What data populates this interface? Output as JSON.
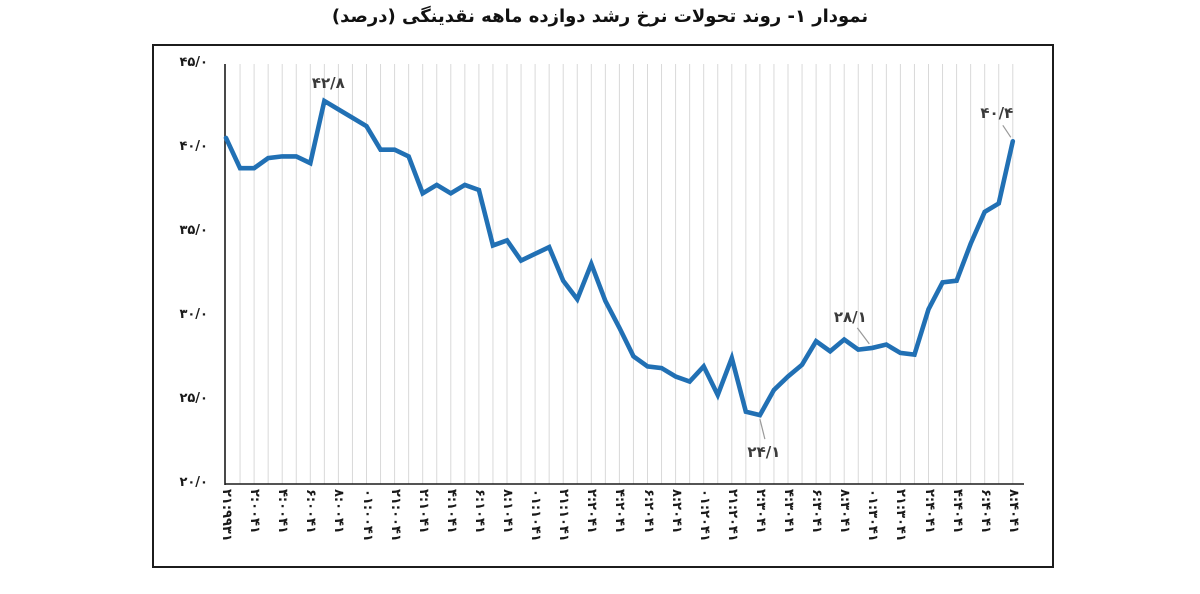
{
  "title": "نمودار ۱- روند تحولات نرخ رشد دوازده ماهه نقدینگی (درصد)",
  "colors": {
    "line": "#2170b4",
    "grid": "#d9d9d9",
    "axis": "#1c1c1c",
    "annotation_text": "#3b3b3b",
    "leader": "#9a9a9a",
    "border": "#1c1c1c",
    "background": "#ffffff"
  },
  "y_axis": {
    "labels": [
      "۴۵/۰",
      "۴۰/۰",
      "۳۵/۰",
      "۳۰/۰",
      "۲۵/۰",
      "۲۰/۰"
    ],
    "min": 20,
    "max": 45,
    "step": 5
  },
  "chart_data": {
    "type": "line",
    "title": "نمودار ۱- روند تحولات نرخ رشد دوازده ماهه نقدینگی (درصد)",
    "ylabel": "درصد",
    "ylim": [
      20,
      45
    ],
    "grid": "vertical-only",
    "legend": "none",
    "xtick_every": 2,
    "categories": [
      "۱۳۹۹:۱۲",
      "۱۴۰۰:۱",
      "۱۴۰۰:۲",
      "۱۴۰۰:۳",
      "۱۴۰۰:۴",
      "۱۴۰۰:۵",
      "۱۴۰۰:۶",
      "۱۴۰۰:۷",
      "۱۴۰۰:۸",
      "۱۴۰۰:۹",
      "۱۴۰۰:۱۰",
      "۱۴۰۰:۱۱",
      "۱۴۰۰:۱۲",
      "۱۴۰۱:۱",
      "۱۴۰۱:۲",
      "۱۴۰۱:۳",
      "۱۴۰۱:۴",
      "۱۴۰۱:۵",
      "۱۴۰۱:۶",
      "۱۴۰۱:۷",
      "۱۴۰۱:۸",
      "۱۴۰۱:۹",
      "۱۴۰۱:۱۰",
      "۱۴۰۱:۱۱",
      "۱۴۰۱:۱۲",
      "۱۴۰۲:۱",
      "۱۴۰۲:۲",
      "۱۴۰۲:۳",
      "۱۴۰۲:۴",
      "۱۴۰۲:۵",
      "۱۴۰۲:۶",
      "۱۴۰۲:۷",
      "۱۴۰۲:۸",
      "۱۴۰۲:۹",
      "۱۴۰۲:۱۰",
      "۱۴۰۲:۱۱",
      "۱۴۰۲:۱۲",
      "۱۴۰۳:۱",
      "۱۴۰۳:۲",
      "۱۴۰۳:۳",
      "۱۴۰۳:۴",
      "۱۴۰۳:۵",
      "۱۴۰۳:۶",
      "۱۴۰۳:۷",
      "۱۴۰۳:۸",
      "۱۴۰۳:۹",
      "۱۴۰۳:۱۰",
      "۱۴۰۳:۱۱",
      "۱۴۰۳:۱۲",
      "۱۴۰۴:۱",
      "۱۴۰۴:۲",
      "۱۴۰۴:۳",
      "۱۴۰۴:۴",
      "۱۴۰۴:۵",
      "۱۴۰۴:۶",
      "۱۴۰۴:۷",
      "۱۴۰۴:۸"
    ],
    "values": [
      40.6,
      38.8,
      38.8,
      39.4,
      39.5,
      39.5,
      39.1,
      42.8,
      42.3,
      41.8,
      41.3,
      39.9,
      39.9,
      39.5,
      37.3,
      37.8,
      37.3,
      37.8,
      37.5,
      34.2,
      34.5,
      33.3,
      33.7,
      34.1,
      32.1,
      31.0,
      33.1,
      30.9,
      29.3,
      27.6,
      27.0,
      26.9,
      26.4,
      26.1,
      27.0,
      25.3,
      27.5,
      24.3,
      24.1,
      25.6,
      26.4,
      27.1,
      28.5,
      27.9,
      28.6,
      28.0,
      28.1,
      28.3,
      27.8,
      27.7,
      30.4,
      32.0,
      32.1,
      34.3,
      36.2,
      36.7,
      40.4
    ],
    "annotations": [
      {
        "index": 7,
        "label": "۴۲/۸",
        "value": 42.8
      },
      {
        "index": 38,
        "label": "۲۴/۱",
        "value": 24.1
      },
      {
        "index": 46,
        "label": "۲۸/۱",
        "value": 28.1
      },
      {
        "index": 56,
        "label": "۴۰/۴",
        "value": 40.4
      }
    ]
  }
}
